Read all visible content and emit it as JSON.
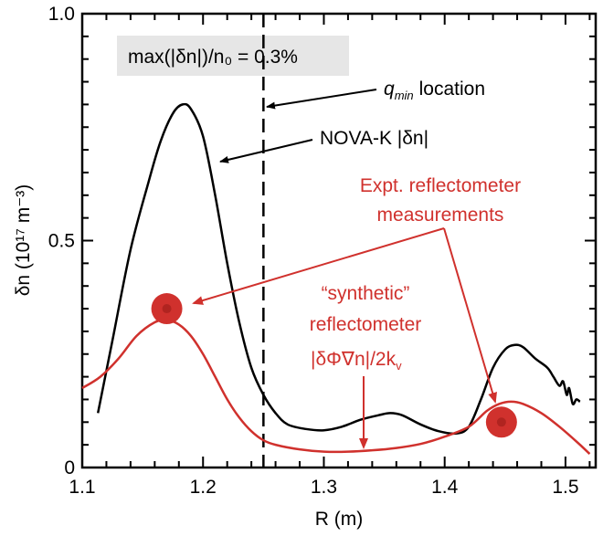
{
  "chart_data": {
    "type": "line",
    "xlabel": "R (m)",
    "ylabel": "δn (10¹⁷ m⁻³)",
    "xlim": [
      1.1,
      1.525
    ],
    "ylim": [
      0,
      1.0
    ],
    "x_ticks": [
      "1.1",
      "1.2",
      "1.3",
      "1.4",
      "1.5"
    ],
    "y_ticks": [
      "0",
      "0.5",
      "1.0"
    ],
    "grid": false,
    "series": [
      {
        "name": "NOVA-K |δn|",
        "color": "#000000",
        "points": [
          [
            1.113,
            0.12
          ],
          [
            1.125,
            0.28
          ],
          [
            1.14,
            0.48
          ],
          [
            1.155,
            0.63
          ],
          [
            1.165,
            0.72
          ],
          [
            1.175,
            0.78
          ],
          [
            1.183,
            0.8
          ],
          [
            1.19,
            0.79
          ],
          [
            1.2,
            0.73
          ],
          [
            1.21,
            0.6
          ],
          [
            1.22,
            0.45
          ],
          [
            1.23,
            0.32
          ],
          [
            1.24,
            0.22
          ],
          [
            1.25,
            0.16
          ],
          [
            1.26,
            0.12
          ],
          [
            1.27,
            0.095
          ],
          [
            1.285,
            0.085
          ],
          [
            1.3,
            0.082
          ],
          [
            1.315,
            0.09
          ],
          [
            1.33,
            0.105
          ],
          [
            1.345,
            0.115
          ],
          [
            1.355,
            0.12
          ],
          [
            1.365,
            0.115
          ],
          [
            1.38,
            0.095
          ],
          [
            1.395,
            0.08
          ],
          [
            1.41,
            0.075
          ],
          [
            1.42,
            0.09
          ],
          [
            1.43,
            0.15
          ],
          [
            1.44,
            0.22
          ],
          [
            1.45,
            0.26
          ],
          [
            1.458,
            0.27
          ],
          [
            1.465,
            0.265
          ],
          [
            1.475,
            0.24
          ],
          [
            1.485,
            0.22
          ],
          [
            1.49,
            0.2
          ],
          [
            1.495,
            0.18
          ],
          [
            1.498,
            0.19
          ],
          [
            1.501,
            0.16
          ],
          [
            1.503,
            0.175
          ],
          [
            1.506,
            0.14
          ],
          [
            1.509,
            0.15
          ],
          [
            1.512,
            0.145
          ]
        ]
      },
      {
        "name": "\"synthetic\" reflectometer |δΦ∇n|/2k_v",
        "color": "#d0312d",
        "points": [
          [
            1.1,
            0.175
          ],
          [
            1.115,
            0.2
          ],
          [
            1.13,
            0.24
          ],
          [
            1.145,
            0.29
          ],
          [
            1.16,
            0.32
          ],
          [
            1.17,
            0.325
          ],
          [
            1.18,
            0.315
          ],
          [
            1.19,
            0.29
          ],
          [
            1.2,
            0.25
          ],
          [
            1.21,
            0.2
          ],
          [
            1.22,
            0.15
          ],
          [
            1.23,
            0.11
          ],
          [
            1.24,
            0.08
          ],
          [
            1.25,
            0.06
          ],
          [
            1.26,
            0.05
          ],
          [
            1.28,
            0.04
          ],
          [
            1.3,
            0.035
          ],
          [
            1.32,
            0.035
          ],
          [
            1.34,
            0.038
          ],
          [
            1.36,
            0.043
          ],
          [
            1.38,
            0.052
          ],
          [
            1.4,
            0.068
          ],
          [
            1.42,
            0.09
          ],
          [
            1.435,
            0.125
          ],
          [
            1.445,
            0.14
          ],
          [
            1.455,
            0.145
          ],
          [
            1.465,
            0.14
          ],
          [
            1.48,
            0.12
          ],
          [
            1.495,
            0.09
          ],
          [
            1.51,
            0.055
          ],
          [
            1.52,
            0.03
          ]
        ]
      }
    ],
    "measurements": {
      "name": "Expt. reflectometer measurements",
      "color": "#d0312d",
      "points": [
        [
          1.17,
          0.35
        ],
        [
          1.447,
          0.1
        ]
      ]
    },
    "vline": {
      "x": 1.25,
      "style": "dashed"
    },
    "annotations": {
      "box_text": "max(|δn|)/n₀ = 0.3%",
      "qmin_label": "location",
      "qmin_symbol": "q",
      "qmin_sub": "min",
      "nova_label": "NOVA-K |δn|",
      "expt_line1": "Expt. reflectometer",
      "expt_line2": "measurements",
      "synth_line1": "“synthetic”",
      "synth_line2": "reflectometer",
      "synth_line3": "|δΦ∇n|/2k",
      "synth_sub": "v"
    }
  }
}
